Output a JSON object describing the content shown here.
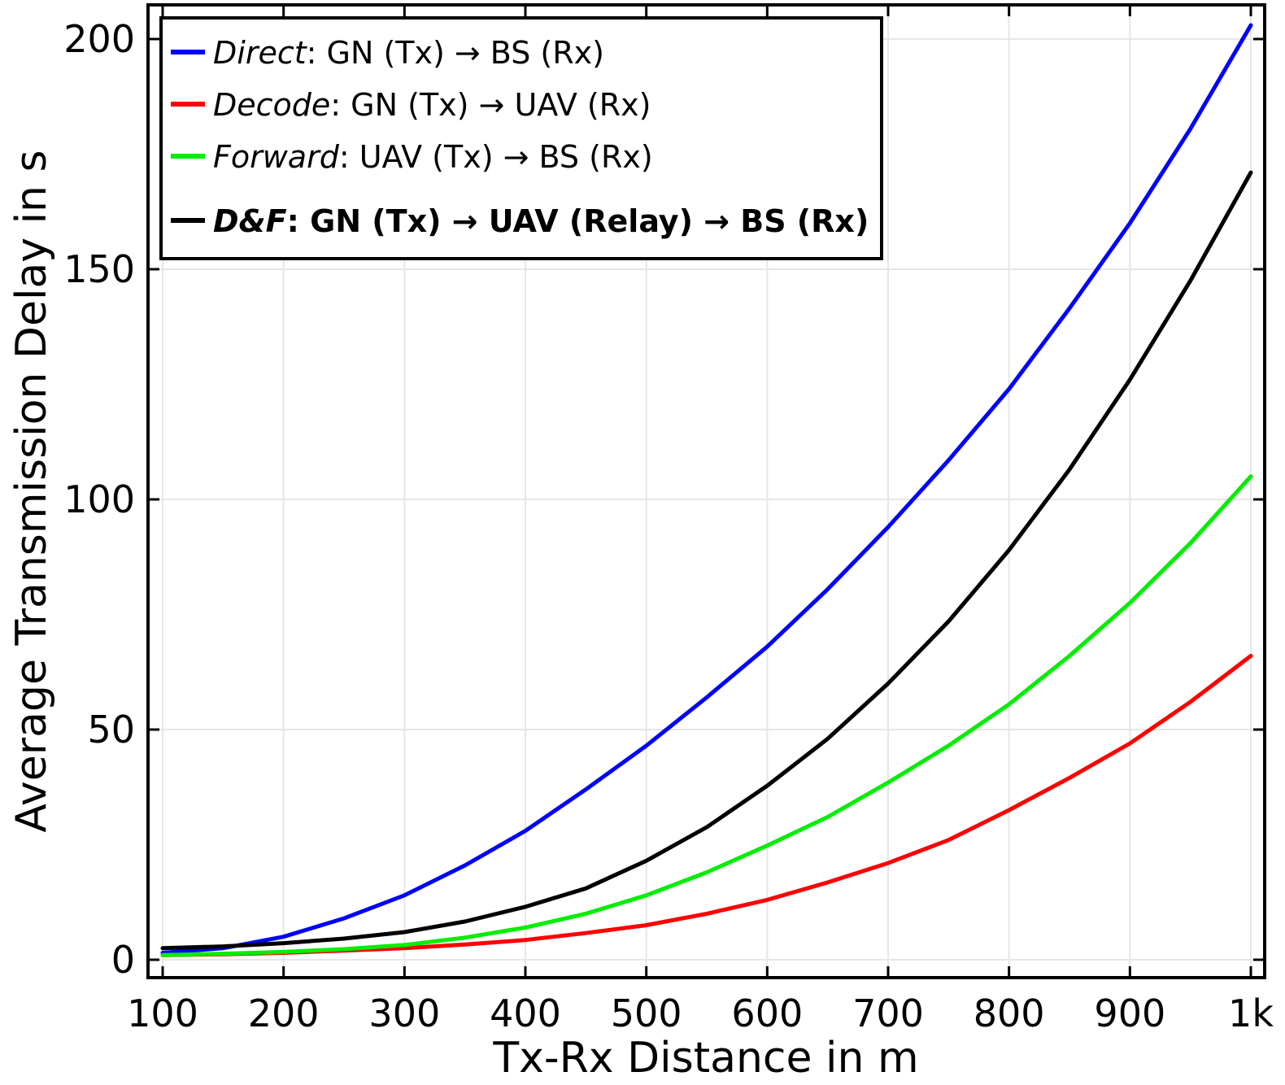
{
  "chart_data": {
    "type": "line",
    "xlabel": "Tx-Rx Distance in m",
    "ylabel": "Average Transmission Delay in s",
    "xlim": [
      100,
      1000
    ],
    "ylim": [
      -1.5,
      207
    ],
    "xticks": [
      100,
      200,
      300,
      400,
      500,
      600,
      700,
      800,
      900,
      1000
    ],
    "xtick_labels": [
      "100",
      "200",
      "300",
      "400",
      "500",
      "600",
      "700",
      "800",
      "900",
      "1k"
    ],
    "yticks": [
      0,
      50,
      100,
      150,
      200
    ],
    "ytick_labels": [
      "0",
      "50",
      "100",
      "150",
      "200"
    ],
    "grid": true,
    "legend_position": "top-left",
    "x": [
      100,
      150,
      200,
      250,
      300,
      350,
      400,
      450,
      500,
      550,
      600,
      650,
      700,
      750,
      800,
      850,
      900,
      950,
      1000
    ],
    "series": [
      {
        "name_italic": "Direct",
        "name_rest": ": GN (Tx) → BS (Rx)",
        "bold": false,
        "color": "#0000ff",
        "values": [
          1.5,
          2.5,
          5.0,
          9.0,
          14.0,
          20.5,
          28.0,
          37.0,
          46.5,
          57.0,
          68.0,
          80.5,
          94.0,
          108.5,
          124.0,
          141.5,
          160.0,
          180.5,
          203.0
        ]
      },
      {
        "name_italic": "Decode",
        "name_rest": ": GN (Tx) → UAV (Rx)",
        "bold": false,
        "color": "#ff0000",
        "values": [
          1.0,
          1.2,
          1.5,
          2.0,
          2.5,
          3.3,
          4.3,
          5.8,
          7.5,
          10.0,
          13.0,
          16.8,
          21.0,
          26.0,
          32.5,
          39.5,
          47.0,
          56.0,
          66.0
        ]
      },
      {
        "name_italic": "Forward",
        "name_rest": ": UAV (Tx) → BS (Rx)",
        "bold": false,
        "color": "#00ee00",
        "values": [
          1.0,
          1.3,
          1.7,
          2.3,
          3.2,
          4.8,
          7.0,
          10.0,
          14.0,
          19.0,
          24.8,
          31.0,
          38.5,
          46.5,
          55.5,
          66.0,
          77.5,
          90.5,
          105.0
        ]
      },
      {
        "name_italic": "D&F",
        "name_rest": ": GN (Tx) → UAV (Relay) → BS (Rx)",
        "bold": true,
        "color": "#000000",
        "values": [
          2.5,
          2.9,
          3.6,
          4.6,
          6.0,
          8.3,
          11.5,
          15.5,
          21.5,
          28.8,
          37.8,
          48.0,
          60.0,
          73.5,
          89.0,
          106.5,
          126.0,
          147.5,
          171.0
        ]
      }
    ]
  }
}
